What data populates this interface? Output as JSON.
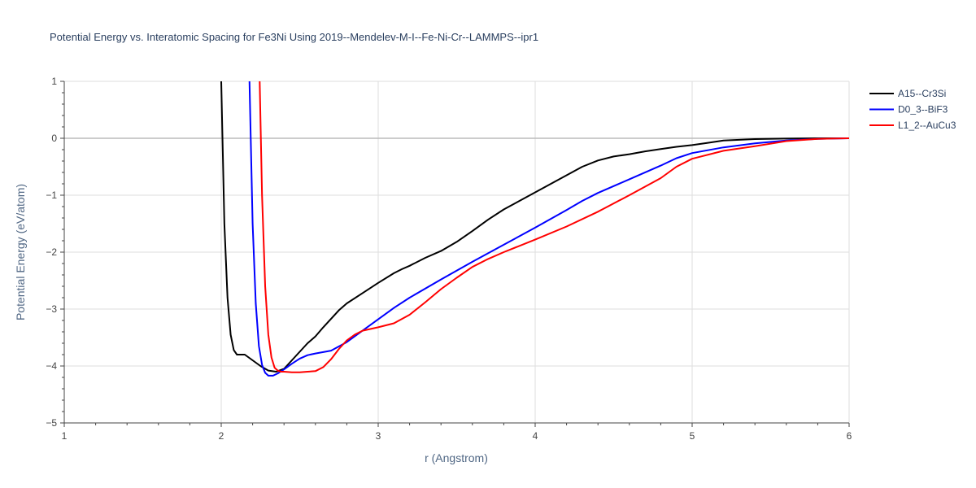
{
  "chart_data": {
    "type": "line",
    "title": "Potential Energy vs. Interatomic Spacing for Fe3Ni Using 2019--Mendelev-M-I--Fe-Ni-Cr--LAMMPS--ipr1",
    "xlabel": "r (Angstrom)",
    "ylabel": "Potential Energy (eV/atom)",
    "xlim": [
      1,
      6
    ],
    "ylim": [
      -5,
      1
    ],
    "x_ticks": [
      "1",
      "2",
      "3",
      "4",
      "5",
      "6"
    ],
    "y_ticks": [
      "1",
      "0",
      "−1",
      "−2",
      "−3",
      "−4",
      "−5"
    ],
    "grid": true,
    "legend_position": "top-right",
    "series": [
      {
        "name": "A15--Cr3Si",
        "color": "#000000",
        "x": [
          2.0,
          2.02,
          2.04,
          2.06,
          2.08,
          2.1,
          2.15,
          2.2,
          2.25,
          2.3,
          2.35,
          2.4,
          2.45,
          2.5,
          2.55,
          2.6,
          2.65,
          2.7,
          2.75,
          2.8,
          2.9,
          3.0,
          3.1,
          3.15,
          3.2,
          3.3,
          3.4,
          3.5,
          3.6,
          3.7,
          3.8,
          3.9,
          4.0,
          4.1,
          4.2,
          4.3,
          4.4,
          4.5,
          4.6,
          4.7,
          4.8,
          4.9,
          5.0,
          5.1,
          5.2,
          5.4,
          5.6,
          5.8,
          6.0
        ],
        "y": [
          1.0,
          -1.5,
          -2.8,
          -3.45,
          -3.72,
          -3.8,
          -3.8,
          -3.9,
          -4.0,
          -4.08,
          -4.1,
          -4.05,
          -3.9,
          -3.75,
          -3.6,
          -3.48,
          -3.32,
          -3.17,
          -3.02,
          -2.9,
          -2.72,
          -2.54,
          -2.37,
          -2.3,
          -2.24,
          -2.1,
          -1.98,
          -1.82,
          -1.63,
          -1.43,
          -1.25,
          -1.1,
          -0.95,
          -0.8,
          -0.65,
          -0.5,
          -0.39,
          -0.32,
          -0.28,
          -0.23,
          -0.19,
          -0.15,
          -0.12,
          -0.08,
          -0.04,
          -0.015,
          -0.005,
          0.0,
          0.0
        ]
      },
      {
        "name": "D0_3--BiF3",
        "color": "#0000ff",
        "x": [
          2.18,
          2.2,
          2.22,
          2.24,
          2.26,
          2.28,
          2.3,
          2.33,
          2.36,
          2.4,
          2.45,
          2.5,
          2.55,
          2.6,
          2.7,
          2.8,
          2.9,
          3.0,
          3.1,
          3.2,
          3.4,
          3.6,
          3.8,
          4.0,
          4.2,
          4.3,
          4.4,
          4.6,
          4.8,
          4.9,
          5.0,
          5.2,
          5.4,
          5.6,
          5.8,
          6.0
        ],
        "y": [
          1.0,
          -1.5,
          -2.9,
          -3.65,
          -3.98,
          -4.12,
          -4.17,
          -4.17,
          -4.13,
          -4.06,
          -3.96,
          -3.87,
          -3.81,
          -3.78,
          -3.73,
          -3.58,
          -3.38,
          -3.18,
          -2.98,
          -2.8,
          -2.48,
          -2.17,
          -1.87,
          -1.57,
          -1.26,
          -1.1,
          -0.96,
          -0.72,
          -0.48,
          -0.35,
          -0.26,
          -0.16,
          -0.09,
          -0.04,
          -0.01,
          0.0
        ]
      },
      {
        "name": "L1_2--AuCu3",
        "color": "#ff0000",
        "x": [
          2.245,
          2.26,
          2.28,
          2.3,
          2.32,
          2.34,
          2.36,
          2.38,
          2.4,
          2.45,
          2.5,
          2.55,
          2.6,
          2.65,
          2.7,
          2.75,
          2.8,
          2.85,
          2.9,
          3.0,
          3.1,
          3.2,
          3.3,
          3.4,
          3.5,
          3.6,
          3.7,
          3.8,
          4.0,
          4.2,
          4.4,
          4.6,
          4.8,
          4.9,
          5.0,
          5.2,
          5.4,
          5.6,
          5.8,
          6.0
        ],
        "y": [
          1.0,
          -1.0,
          -2.6,
          -3.45,
          -3.85,
          -4.03,
          -4.08,
          -4.1,
          -4.1,
          -4.11,
          -4.11,
          -4.1,
          -4.09,
          -4.02,
          -3.88,
          -3.7,
          -3.55,
          -3.45,
          -3.38,
          -3.32,
          -3.25,
          -3.1,
          -2.88,
          -2.65,
          -2.45,
          -2.26,
          -2.12,
          -2.0,
          -1.78,
          -1.55,
          -1.29,
          -1.0,
          -0.7,
          -0.5,
          -0.36,
          -0.22,
          -0.14,
          -0.05,
          -0.01,
          0.0
        ]
      }
    ]
  }
}
